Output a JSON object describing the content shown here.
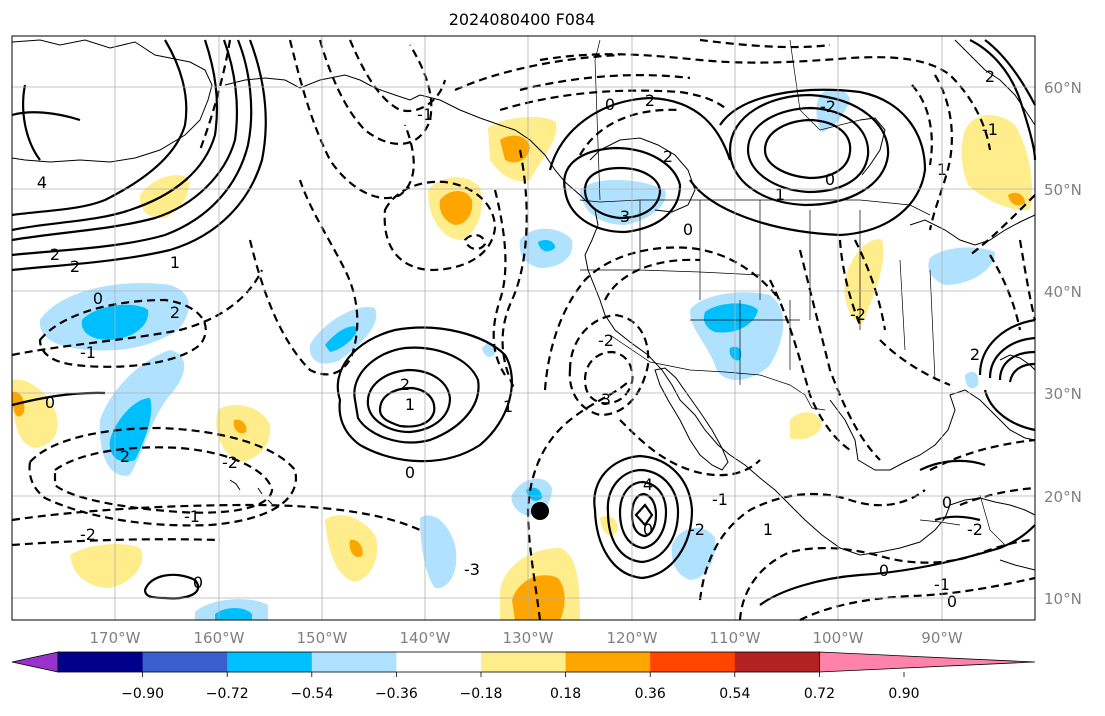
{
  "title": "2024080400 F084",
  "lon_labels": [
    "170°W",
    "160°W",
    "150°W",
    "140°W",
    "130°W",
    "120°W",
    "110°W",
    "100°W",
    "90°W"
  ],
  "lat_labels": [
    "60°N",
    "50°N",
    "40°N",
    "30°N",
    "20°N",
    "10°N"
  ],
  "colorbar": {
    "ticks": [
      "−0.90",
      "−0.72",
      "−0.54",
      "−0.36",
      "−0.18",
      "0.18",
      "0.36",
      "0.54",
      "0.72",
      "0.90"
    ],
    "colors": [
      "#9932cc",
      "#00008b",
      "#3a5fcd",
      "#00bfff",
      "#b0e2ff",
      "#ffffff",
      "#ffec8b",
      "#ffa500",
      "#ff4500",
      "#b22222",
      "#ff82ab"
    ]
  },
  "contour_labels": [
    "4",
    "2",
    "2",
    "1",
    "0",
    "2",
    "-1",
    "0",
    "2",
    "-2",
    "-1",
    "2",
    "1",
    "0",
    "1",
    "-2",
    "0",
    "-3",
    "-1",
    "0",
    "2",
    "2",
    "3",
    "-2",
    "0",
    "1",
    "2",
    "-1",
    "1",
    "0",
    "-2",
    "-2",
    "3",
    "4",
    "0",
    "-2",
    "-1",
    "1",
    "0",
    "-1",
    "0",
    "-2",
    "0",
    "2"
  ]
}
